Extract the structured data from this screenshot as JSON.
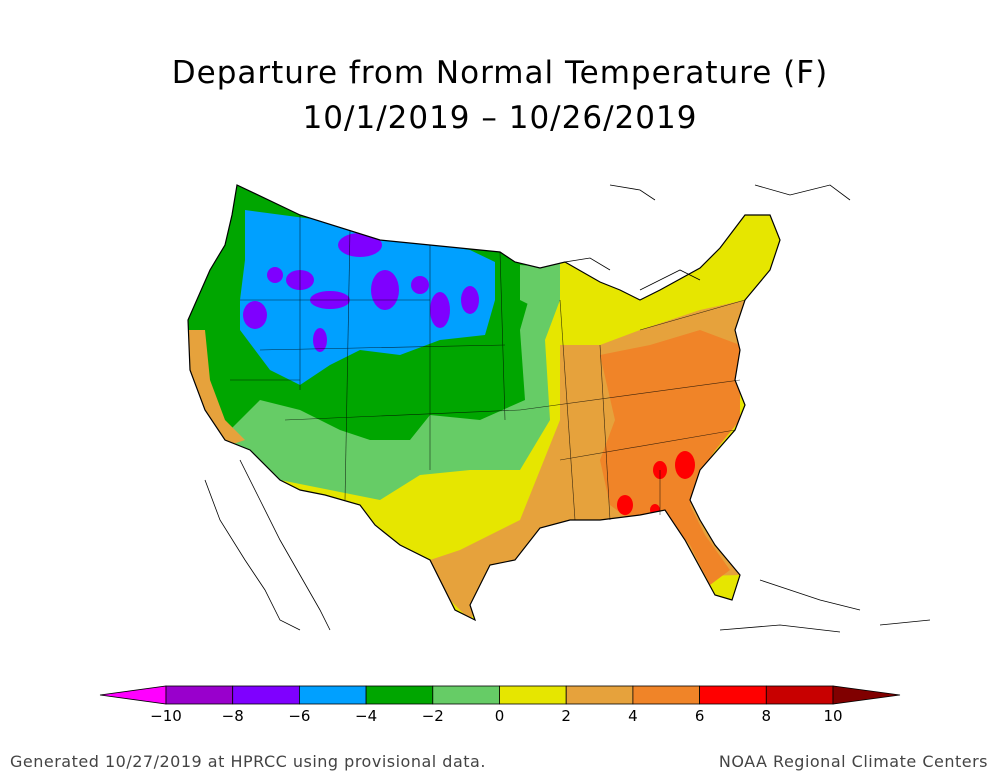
{
  "title": {
    "line1": "Departure from Normal Temperature (F)",
    "line2": "10/1/2019 – 10/26/2019"
  },
  "legend": {
    "tick_labels": [
      "−10",
      "−8",
      "−6",
      "−4",
      "−2",
      "0",
      "2",
      "4",
      "6",
      "8",
      "10"
    ],
    "bins": [
      {
        "range": "< -10",
        "color": "#ff00ff"
      },
      {
        "range": "-10 to -8",
        "color": "#9900cc"
      },
      {
        "range": "-8 to -6",
        "color": "#7f00ff"
      },
      {
        "range": "-6 to -4",
        "color": "#00a0ff"
      },
      {
        "range": "-4 to -2",
        "color": "#00a600"
      },
      {
        "range": "-2 to 0",
        "color": "#66cc66"
      },
      {
        "range": "0 to 2",
        "color": "#e6e600"
      },
      {
        "range": "2 to 4",
        "color": "#e6a23c"
      },
      {
        "range": "4 to 6",
        "color": "#f08428"
      },
      {
        "range": "6 to 8",
        "color": "#ff0000"
      },
      {
        "range": "8 to 10",
        "color": "#c80000"
      },
      {
        "range": "> 10",
        "color": "#800000"
      }
    ]
  },
  "footer": {
    "left": "Generated 10/27/2019 at HPRCC using provisional data.",
    "right": "NOAA Regional Climate Centers"
  }
}
